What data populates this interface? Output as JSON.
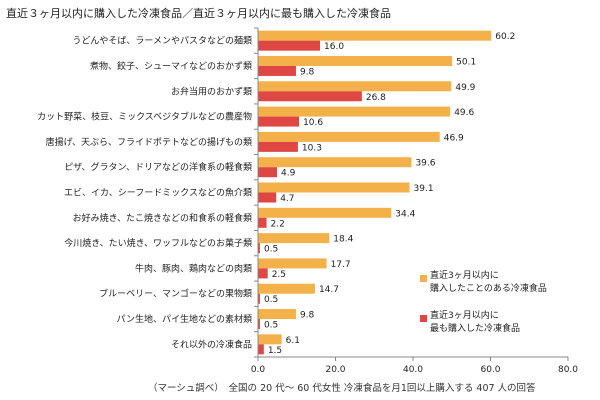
{
  "chart_data": {
    "type": "bar",
    "orientation": "horizontal",
    "title": "直近３ヶ月以内に購入した冷凍食品／直近３ヶ月以内に最も購入した冷凍食品",
    "categories": [
      "うどんやそば、ラーメンやパスタなどの麺類",
      "煮物、餃子、シューマイなどのおかず類",
      "お弁当用のおかず類",
      "カット野菜、枝豆、ミックスベジタブルなどの農産物",
      "唐揚げ、天ぷら、フライドポテトなどの揚げもの類",
      "ピザ、グラタン、ドリアなどの洋食系の軽食類",
      "エビ、イカ、シーフードミックスなどの魚介類",
      "お好み焼き、たこ焼きなどの和食系の軽食類",
      "今川焼き、たい焼き、ワッフルなどのお菓子類",
      "牛肉、豚肉、鶏肉などの肉類",
      "ブルーベリー、マンゴーなどの果物類",
      "パン生地、パイ生地などの素材類",
      "それ以外の冷凍食品"
    ],
    "series": [
      {
        "name": "直近3ヶ月以内に購入したことのある冷凍食品",
        "color": "#F5B149",
        "values": [
          60.2,
          50.1,
          49.9,
          49.6,
          46.9,
          39.6,
          39.1,
          34.4,
          18.4,
          17.7,
          14.7,
          9.8,
          6.1
        ]
      },
      {
        "name": "直近3ヶ月以内に最も購入した冷凍食品",
        "color": "#DE4744",
        "values": [
          16.0,
          9.8,
          26.8,
          10.6,
          10.3,
          4.9,
          4.7,
          2.2,
          0.5,
          2.5,
          0.5,
          0.5,
          1.5
        ]
      }
    ],
    "xlim": [
      0,
      80
    ],
    "xticks": [
      "0.0",
      "20.0",
      "40.0",
      "60.0",
      "80.0"
    ],
    "grid": false,
    "legend_position": "right"
  },
  "legend": [
    {
      "lines": [
        "直近3ヶ月以内に",
        "購入したことのある冷凍食品"
      ],
      "color": "#F5B149"
    },
    {
      "lines": [
        "直近3ヶ月以内に",
        "最も購入した冷凍食品"
      ],
      "color": "#DE4744"
    }
  ],
  "note": "（マーシュ調べ）　全国の 20 代～ 60 代女性 冷凍食品を月1回以上購入する 407 人の回答"
}
